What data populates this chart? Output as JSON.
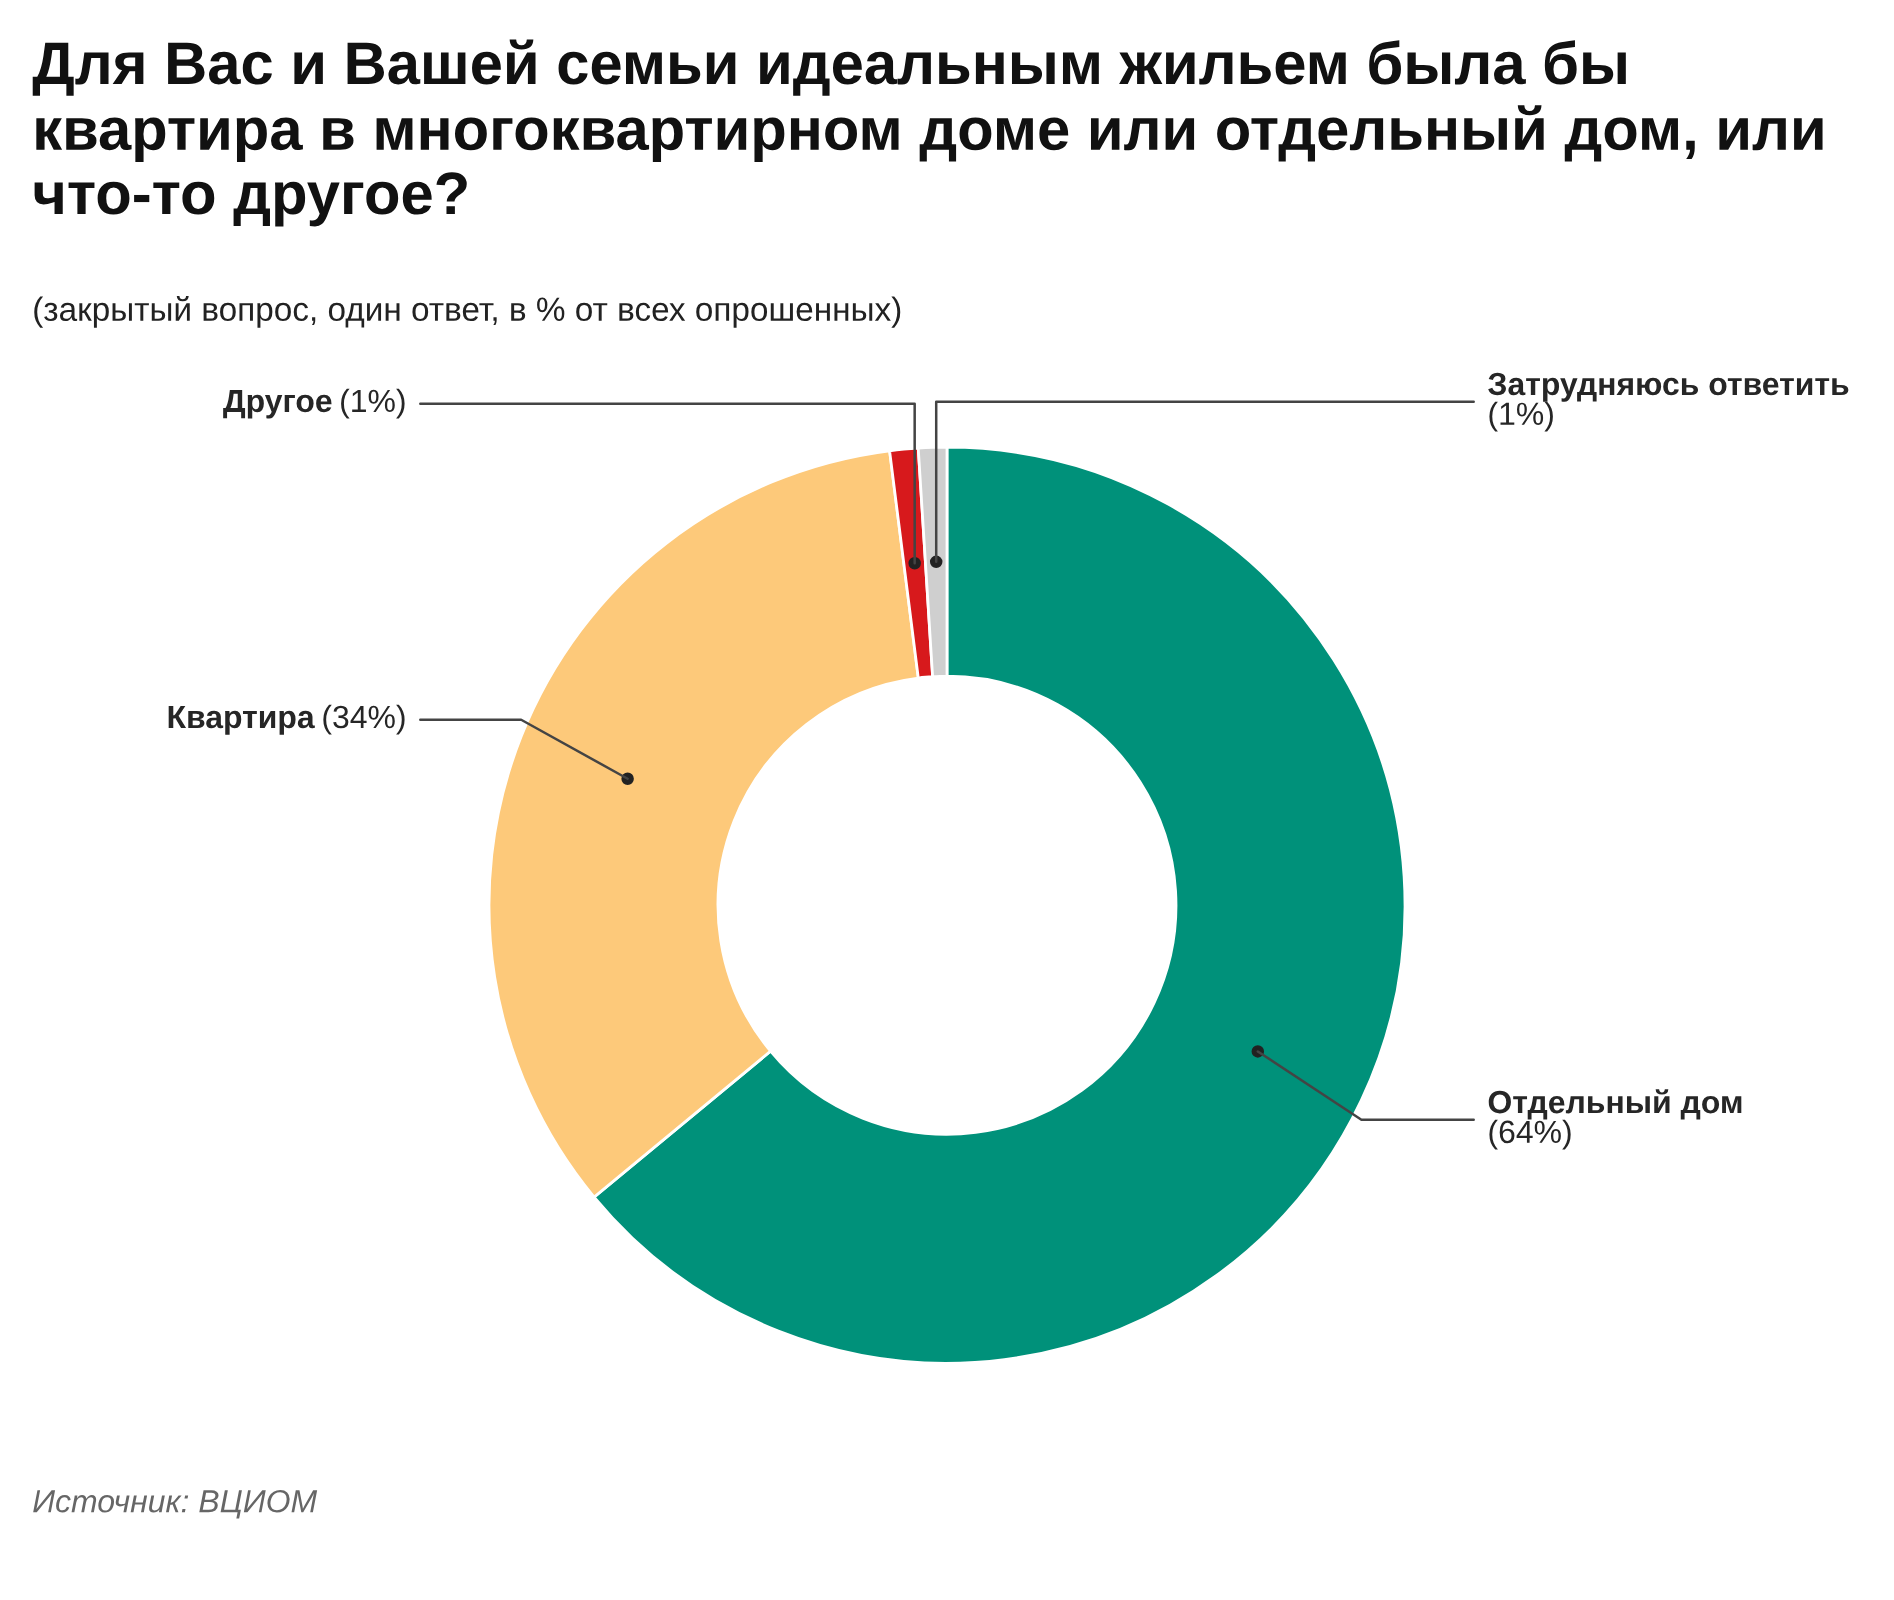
{
  "chart_data": {
    "type": "donut",
    "title": "Для Вас и Вашей семьи идеальным жильем была бы квартира в многоквартирном доме или отдельный дом, или что-то другое?",
    "subtitle": "(закрытый вопрос, один ответ, в % от всех опрошенных)",
    "categories": [
      "Отдельный дом",
      "Квартира",
      "Другое",
      "Затрудняюсь ответить"
    ],
    "values": [
      64,
      34,
      1,
      1
    ],
    "value_labels": [
      "(64%)",
      "(34%)",
      "(1%)",
      "(1%)"
    ],
    "colors": [
      "#00917a",
      "#fdc97a",
      "#d7191c",
      "#cfcfcf"
    ],
    "annotations": [
      "Источник: ВЦИОМ"
    ]
  }
}
